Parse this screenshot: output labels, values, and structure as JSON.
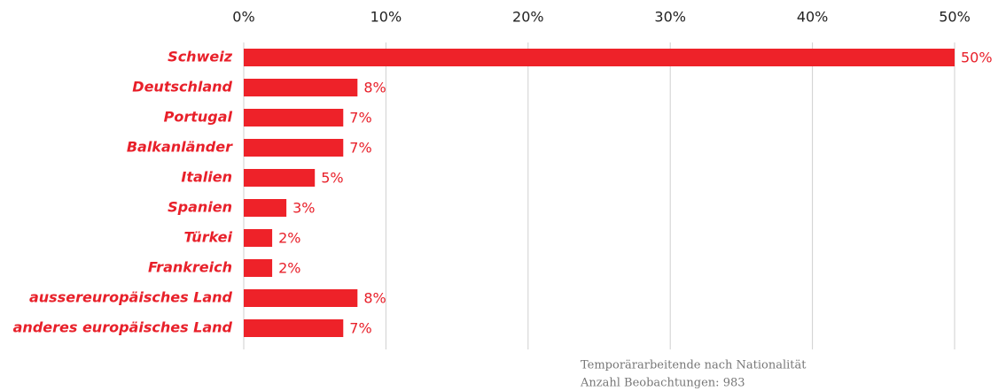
{
  "chart_data": {
    "type": "bar",
    "orientation": "horizontal",
    "categories": [
      "Schweiz",
      "Deutschland",
      "Portugal",
      "Balkanländer",
      "Italien",
      "Spanien",
      "Türkei",
      "Frankreich",
      "aussereuropäisches Land",
      "anderes europäisches Land"
    ],
    "values": [
      50,
      8,
      7,
      7,
      5,
      3,
      2,
      2,
      8,
      7
    ],
    "value_labels": [
      "50%",
      "8%",
      "7%",
      "7%",
      "5%",
      "3%",
      "2%",
      "2%",
      "8%",
      "7%"
    ],
    "color": "#ee2229",
    "xlim": [
      0,
      50
    ],
    "xticks": [
      {
        "value": 0,
        "label": "0%"
      },
      {
        "value": 10,
        "label": "10%"
      },
      {
        "value": 20,
        "label": "20%"
      },
      {
        "value": 30,
        "label": "30%"
      },
      {
        "value": 40,
        "label": "40%"
      },
      {
        "value": 50,
        "label": "50%"
      }
    ],
    "grid": true,
    "annotations": [
      "Temporärarbeitende nach Nationalität",
      "Anzahl Beobachtungen: 983"
    ]
  }
}
